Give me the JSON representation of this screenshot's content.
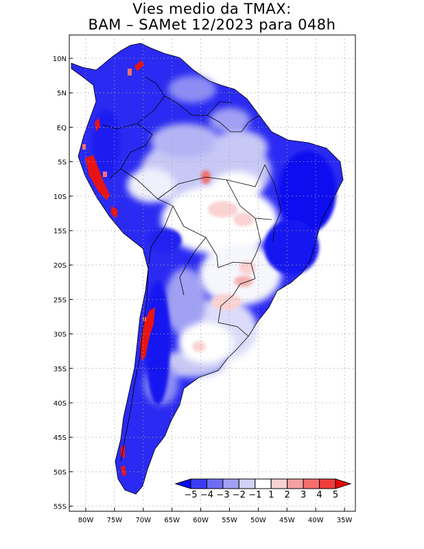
{
  "title": {
    "line1": "Vies medio da TMAX:",
    "line2": "BAM – SAMet 12/2023  para 048h"
  },
  "axes": {
    "lon_ticks": [
      "80W",
      "75W",
      "70W",
      "65W",
      "60W",
      "55W",
      "50W",
      "45W",
      "40W",
      "35W"
    ],
    "lat_ticks": [
      "10N",
      "5N",
      "EQ",
      "5S",
      "10S",
      "15S",
      "20S",
      "25S",
      "30S",
      "35S",
      "40S",
      "45S",
      "50S",
      "55S"
    ]
  },
  "colorbar": {
    "labels": [
      "−5",
      "−4",
      "−3",
      "−2",
      "−1",
      "1",
      "2",
      "3",
      "4",
      "5"
    ],
    "colors": [
      "#0a0af5",
      "#3c3cf5",
      "#6e6ef5",
      "#a0a0f5",
      "#d2d2f8",
      "#ffffff",
      "#fad2d2",
      "#f5a0a0",
      "#f56e6e",
      "#f03c3c",
      "#e60a0a"
    ]
  },
  "legend_colors": {
    "strong_cold": "#1414f0",
    "moderate_cold": "#5050f0",
    "weak_cold": "#b4b4f5",
    "neutral": "#ffffff",
    "weak_warm": "#fad2d2",
    "strong_warm": "#e61414"
  }
}
